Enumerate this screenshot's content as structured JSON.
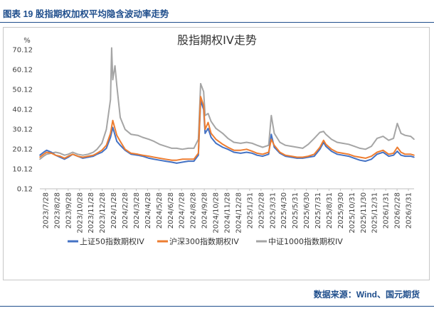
{
  "caption": "图表 19  股指期权加权平均隐含波动率走势",
  "source": "数据来源：Wind、国元期货",
  "chart_data": {
    "type": "line",
    "title": "股指期权IV走势",
    "ylabel": "%",
    "ylim": [
      0.12,
      70.12
    ],
    "yticks": [
      "0.12",
      "10.12",
      "20.12",
      "30.12",
      "40.12",
      "50.12",
      "60.12",
      "70.12"
    ],
    "x_range": [
      "2023-07-28",
      "2026-04-24"
    ],
    "xtick_labels": [
      "2023/7/28",
      "2023/8/28",
      "2023/9/28",
      "2023/10/28",
      "2023/11/28",
      "2023/12/28",
      "2024/1/28",
      "2024/2/28",
      "2024/3/28",
      "2024/4/28",
      "2024/5/28",
      "2024/6/28",
      "2024/7/28",
      "2024/8/28",
      "2024/9/28",
      "2024/10/28",
      "2024/11/28",
      "2024/12/28",
      "2025/1/31",
      "2025/2/28",
      "2025/3/31",
      "2025/4/30",
      "2025/5/31",
      "2025/6/30",
      "2025/7/31",
      "2025/8/31",
      "2025/9/30",
      "2025/10/31",
      "2025/11/30",
      "2025/12/31",
      "2026/1/31",
      "2026/2/28",
      "2026/3/31"
    ],
    "legend_position": "bottom",
    "grid": false,
    "series": [
      {
        "name": "上证50指数期权IV",
        "color": "#4472c4",
        "points": [
          [
            "2023-07-28",
            17.0
          ],
          [
            "2023-08-07",
            18.5
          ],
          [
            "2023-08-15",
            19.5
          ],
          [
            "2023-08-28",
            18.5
          ],
          [
            "2023-09-08",
            17.0
          ],
          [
            "2023-09-20",
            16.0
          ],
          [
            "2023-10-02",
            15.0
          ],
          [
            "2023-10-12",
            16.0
          ],
          [
            "2023-10-24",
            17.5
          ],
          [
            "2023-11-06",
            16.5
          ],
          [
            "2023-11-20",
            15.5
          ],
          [
            "2023-12-04",
            16.0
          ],
          [
            "2023-12-18",
            16.5
          ],
          [
            "2023-12-28",
            17.5
          ],
          [
            "2024-01-10",
            18.5
          ],
          [
            "2024-01-22",
            20.5
          ],
          [
            "2024-02-02",
            26.0
          ],
          [
            "2024-02-08",
            31.0
          ],
          [
            "2024-02-19",
            24.0
          ],
          [
            "2024-02-28",
            22.0
          ],
          [
            "2024-03-12",
            19.5
          ],
          [
            "2024-03-28",
            17.5
          ],
          [
            "2024-04-15",
            17.0
          ],
          [
            "2024-04-28",
            16.5
          ],
          [
            "2024-05-15",
            15.5
          ],
          [
            "2024-05-28",
            15.0
          ],
          [
            "2024-06-12",
            14.5
          ],
          [
            "2024-06-28",
            14.0
          ],
          [
            "2024-07-15",
            13.5
          ],
          [
            "2024-07-28",
            13.0
          ],
          [
            "2024-08-12",
            13.5
          ],
          [
            "2024-08-28",
            14.0
          ],
          [
            "2024-09-12",
            14.0
          ],
          [
            "2024-09-24",
            17.0
          ],
          [
            "2024-09-30",
            44.5
          ],
          [
            "2024-10-08",
            40.0
          ],
          [
            "2024-10-12",
            28.0
          ],
          [
            "2024-10-20",
            30.5
          ],
          [
            "2024-10-28",
            26.0
          ],
          [
            "2024-11-10",
            23.0
          ],
          [
            "2024-11-28",
            21.0
          ],
          [
            "2024-12-12",
            20.0
          ],
          [
            "2024-12-28",
            18.5
          ],
          [
            "2025-01-15",
            18.0
          ],
          [
            "2025-01-31",
            18.5
          ],
          [
            "2025-02-15",
            18.0
          ],
          [
            "2025-02-28",
            17.0
          ],
          [
            "2025-03-15",
            16.5
          ],
          [
            "2025-03-31",
            17.5
          ],
          [
            "2025-04-07",
            27.5
          ],
          [
            "2025-04-15",
            21.0
          ],
          [
            "2025-04-30",
            18.0
          ],
          [
            "2025-05-15",
            16.5
          ],
          [
            "2025-05-31",
            16.0
          ],
          [
            "2025-06-15",
            15.5
          ],
          [
            "2025-06-30",
            15.5
          ],
          [
            "2025-07-15",
            16.0
          ],
          [
            "2025-07-31",
            16.5
          ],
          [
            "2025-08-15",
            20.0
          ],
          [
            "2025-08-25",
            23.5
          ],
          [
            "2025-08-31",
            21.5
          ],
          [
            "2025-09-15",
            19.0
          ],
          [
            "2025-09-30",
            17.5
          ],
          [
            "2025-10-15",
            17.0
          ],
          [
            "2025-10-31",
            16.5
          ],
          [
            "2025-11-15",
            15.5
          ],
          [
            "2025-11-30",
            14.5
          ],
          [
            "2025-12-15",
            14.0
          ],
          [
            "2025-12-31",
            15.0
          ],
          [
            "2026-01-15",
            17.5
          ],
          [
            "2026-01-31",
            18.5
          ],
          [
            "2026-02-15",
            16.5
          ],
          [
            "2026-02-28",
            17.0
          ],
          [
            "2026-03-10",
            19.0
          ],
          [
            "2026-03-20",
            17.0
          ],
          [
            "2026-03-31",
            16.5
          ],
          [
            "2026-04-15",
            16.5
          ],
          [
            "2026-04-24",
            16.0
          ]
        ]
      },
      {
        "name": "沪深300指数期权IV",
        "color": "#ed7d31",
        "points": [
          [
            "2023-07-28",
            16.0
          ],
          [
            "2023-08-07",
            17.5
          ],
          [
            "2023-08-15",
            18.5
          ],
          [
            "2023-08-28",
            18.0
          ],
          [
            "2023-09-08",
            17.0
          ],
          [
            "2023-09-20",
            16.5
          ],
          [
            "2023-10-02",
            15.5
          ],
          [
            "2023-10-12",
            16.5
          ],
          [
            "2023-10-24",
            17.5
          ],
          [
            "2023-11-06",
            16.5
          ],
          [
            "2023-11-20",
            16.0
          ],
          [
            "2023-12-04",
            16.5
          ],
          [
            "2023-12-18",
            17.0
          ],
          [
            "2023-12-28",
            18.0
          ],
          [
            "2024-01-10",
            19.5
          ],
          [
            "2024-01-22",
            22.0
          ],
          [
            "2024-02-02",
            28.0
          ],
          [
            "2024-02-08",
            34.5
          ],
          [
            "2024-02-19",
            27.0
          ],
          [
            "2024-02-28",
            24.0
          ],
          [
            "2024-03-12",
            20.0
          ],
          [
            "2024-03-28",
            18.0
          ],
          [
            "2024-04-15",
            17.5
          ],
          [
            "2024-04-28",
            17.0
          ],
          [
            "2024-05-15",
            16.5
          ],
          [
            "2024-05-28",
            16.0
          ],
          [
            "2024-06-12",
            15.5
          ],
          [
            "2024-06-28",
            15.0
          ],
          [
            "2024-07-15",
            14.5
          ],
          [
            "2024-07-28",
            14.5
          ],
          [
            "2024-08-12",
            15.0
          ],
          [
            "2024-08-28",
            15.0
          ],
          [
            "2024-09-12",
            15.0
          ],
          [
            "2024-09-24",
            18.0
          ],
          [
            "2024-09-30",
            46.5
          ],
          [
            "2024-10-08",
            42.0
          ],
          [
            "2024-10-12",
            30.0
          ],
          [
            "2024-10-20",
            33.5
          ],
          [
            "2024-10-28",
            28.0
          ],
          [
            "2024-11-10",
            25.0
          ],
          [
            "2024-11-28",
            22.5
          ],
          [
            "2024-12-12",
            21.0
          ],
          [
            "2024-12-28",
            19.5
          ],
          [
            "2025-01-15",
            19.5
          ],
          [
            "2025-01-31",
            20.0
          ],
          [
            "2025-02-15",
            19.0
          ],
          [
            "2025-02-28",
            18.0
          ],
          [
            "2025-03-15",
            17.5
          ],
          [
            "2025-03-31",
            18.5
          ],
          [
            "2025-04-07",
            25.0
          ],
          [
            "2025-04-15",
            22.0
          ],
          [
            "2025-04-30",
            18.5
          ],
          [
            "2025-05-15",
            17.0
          ],
          [
            "2025-05-31",
            16.5
          ],
          [
            "2025-06-15",
            16.0
          ],
          [
            "2025-06-30",
            16.0
          ],
          [
            "2025-07-15",
            16.5
          ],
          [
            "2025-07-31",
            17.5
          ],
          [
            "2025-08-15",
            21.0
          ],
          [
            "2025-08-25",
            24.5
          ],
          [
            "2025-08-31",
            22.5
          ],
          [
            "2025-09-15",
            20.0
          ],
          [
            "2025-09-30",
            18.5
          ],
          [
            "2025-10-15",
            18.0
          ],
          [
            "2025-10-31",
            17.5
          ],
          [
            "2025-11-15",
            16.5
          ],
          [
            "2025-11-30",
            16.0
          ],
          [
            "2025-12-15",
            15.5
          ],
          [
            "2025-12-31",
            16.5
          ],
          [
            "2026-01-15",
            18.5
          ],
          [
            "2026-01-31",
            19.5
          ],
          [
            "2026-02-15",
            17.5
          ],
          [
            "2026-02-28",
            18.0
          ],
          [
            "2026-03-10",
            21.0
          ],
          [
            "2026-03-20",
            18.5
          ],
          [
            "2026-03-31",
            17.5
          ],
          [
            "2026-04-15",
            17.5
          ],
          [
            "2026-04-24",
            17.0
          ]
        ]
      },
      {
        "name": "中证1000指数期权IV",
        "color": "#a5a5a5",
        "points": [
          [
            "2023-07-28",
            15.0
          ],
          [
            "2023-08-07",
            16.5
          ],
          [
            "2023-08-15",
            17.5
          ],
          [
            "2023-08-28",
            18.0
          ],
          [
            "2023-09-08",
            18.5
          ],
          [
            "2023-09-20",
            18.0
          ],
          [
            "2023-10-02",
            17.0
          ],
          [
            "2023-10-12",
            17.5
          ],
          [
            "2023-10-24",
            18.5
          ],
          [
            "2023-11-06",
            17.5
          ],
          [
            "2023-11-20",
            17.0
          ],
          [
            "2023-12-04",
            17.5
          ],
          [
            "2023-12-18",
            18.5
          ],
          [
            "2023-12-28",
            20.0
          ],
          [
            "2024-01-10",
            23.0
          ],
          [
            "2024-01-22",
            30.0
          ],
          [
            "2024-02-02",
            45.0
          ],
          [
            "2024-02-05",
            71.0
          ],
          [
            "2024-02-08",
            55.0
          ],
          [
            "2024-02-14",
            62.0
          ],
          [
            "2024-02-19",
            52.0
          ],
          [
            "2024-02-28",
            36.0
          ],
          [
            "2024-03-12",
            30.0
          ],
          [
            "2024-03-28",
            27.5
          ],
          [
            "2024-04-15",
            27.0
          ],
          [
            "2024-04-28",
            26.0
          ],
          [
            "2024-05-15",
            25.0
          ],
          [
            "2024-05-28",
            24.0
          ],
          [
            "2024-06-12",
            22.5
          ],
          [
            "2024-06-28",
            21.5
          ],
          [
            "2024-07-15",
            20.5
          ],
          [
            "2024-07-28",
            20.5
          ],
          [
            "2024-08-12",
            20.0
          ],
          [
            "2024-08-28",
            20.5
          ],
          [
            "2024-09-12",
            20.5
          ],
          [
            "2024-09-24",
            25.0
          ],
          [
            "2024-09-30",
            53.0
          ],
          [
            "2024-10-08",
            49.0
          ],
          [
            "2024-10-12",
            37.0
          ],
          [
            "2024-10-20",
            38.0
          ],
          [
            "2024-10-28",
            34.0
          ],
          [
            "2024-11-10",
            30.5
          ],
          [
            "2024-11-28",
            28.0
          ],
          [
            "2024-12-12",
            25.5
          ],
          [
            "2024-12-28",
            23.5
          ],
          [
            "2025-01-15",
            23.0
          ],
          [
            "2025-01-31",
            23.5
          ],
          [
            "2025-02-15",
            23.0
          ],
          [
            "2025-02-28",
            22.0
          ],
          [
            "2025-03-15",
            21.0
          ],
          [
            "2025-03-31",
            22.0
          ],
          [
            "2025-04-07",
            37.0
          ],
          [
            "2025-04-15",
            28.0
          ],
          [
            "2025-04-30",
            23.5
          ],
          [
            "2025-05-15",
            22.0
          ],
          [
            "2025-05-31",
            21.5
          ],
          [
            "2025-06-15",
            21.0
          ],
          [
            "2025-06-30",
            20.5
          ],
          [
            "2025-07-15",
            22.5
          ],
          [
            "2025-07-31",
            25.5
          ],
          [
            "2025-08-15",
            28.5
          ],
          [
            "2025-08-25",
            29.0
          ],
          [
            "2025-08-31",
            27.5
          ],
          [
            "2025-09-15",
            25.0
          ],
          [
            "2025-09-30",
            23.5
          ],
          [
            "2025-10-15",
            23.0
          ],
          [
            "2025-10-31",
            22.5
          ],
          [
            "2025-11-15",
            21.5
          ],
          [
            "2025-11-30",
            20.5
          ],
          [
            "2025-12-15",
            20.0
          ],
          [
            "2025-12-31",
            21.5
          ],
          [
            "2026-01-15",
            25.5
          ],
          [
            "2026-01-31",
            26.5
          ],
          [
            "2026-02-15",
            24.5
          ],
          [
            "2026-02-28",
            25.5
          ],
          [
            "2026-03-10",
            33.0
          ],
          [
            "2026-03-20",
            28.0
          ],
          [
            "2026-03-31",
            27.0
          ],
          [
            "2026-04-15",
            26.5
          ],
          [
            "2026-04-24",
            25.0
          ]
        ]
      }
    ]
  }
}
